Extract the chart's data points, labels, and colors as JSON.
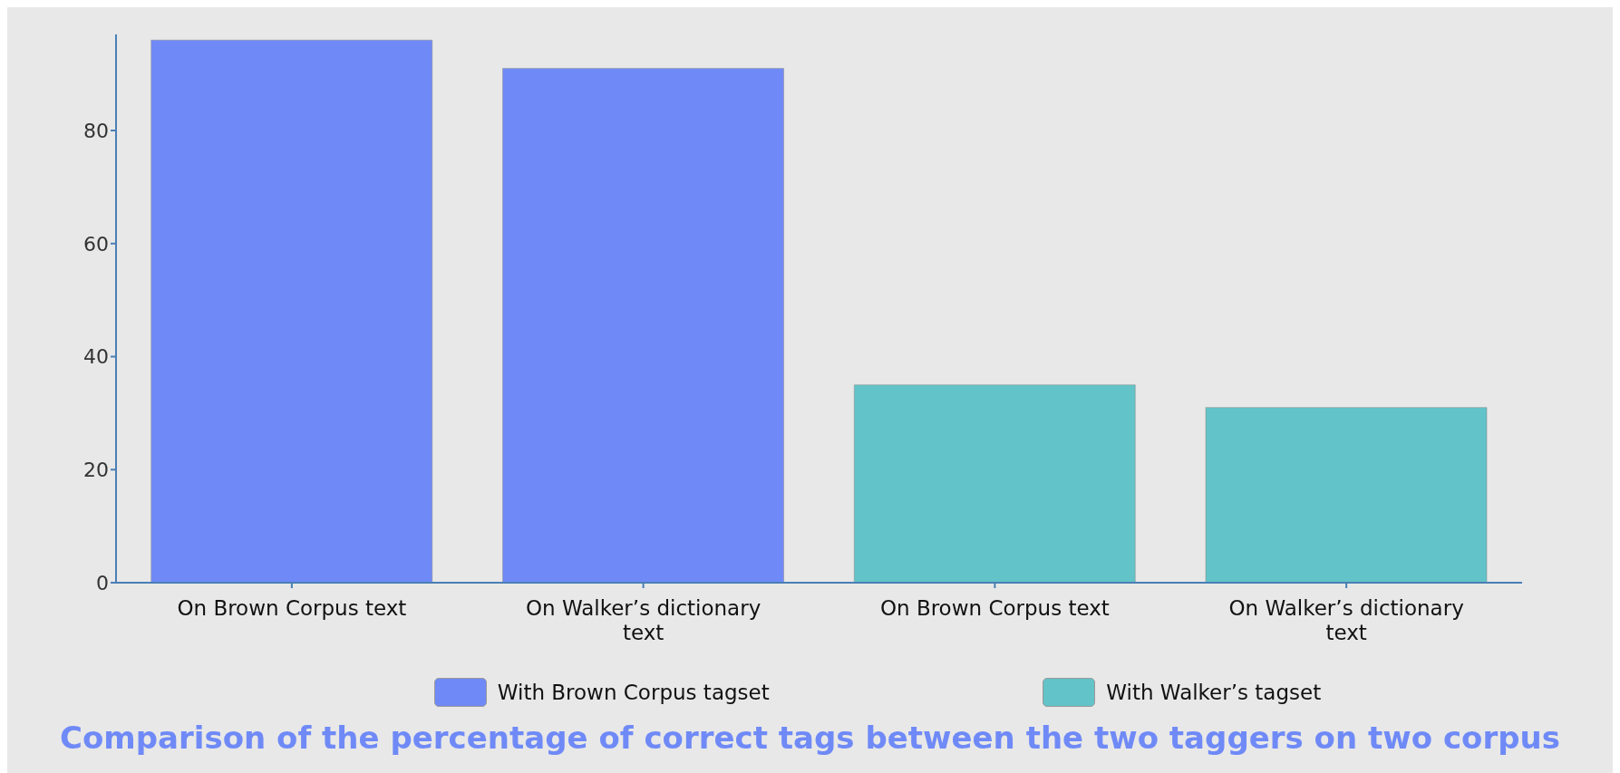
{
  "chart_data": {
    "type": "bar",
    "title": "Comparison of the percentage of correct tags between the two taggers on two corpus",
    "categories": [
      "On Brown Corpus text",
      "On Walker’s dictionary text",
      "On Brown Corpus text",
      "On Walker’s dictionary text"
    ],
    "series": [
      {
        "name": "With Brown Corpus tagset",
        "color": "#6f8af7",
        "values": [
          96,
          91,
          null,
          null
        ]
      },
      {
        "name": "With Walker’s tagset",
        "color": "#62c3c8",
        "values": [
          null,
          null,
          35,
          31
        ]
      }
    ],
    "stacked": true,
    "ylim": [
      0,
      97
    ],
    "yticks": [
      0,
      20,
      40,
      60,
      80
    ],
    "grid": false,
    "legend": "bottom"
  }
}
